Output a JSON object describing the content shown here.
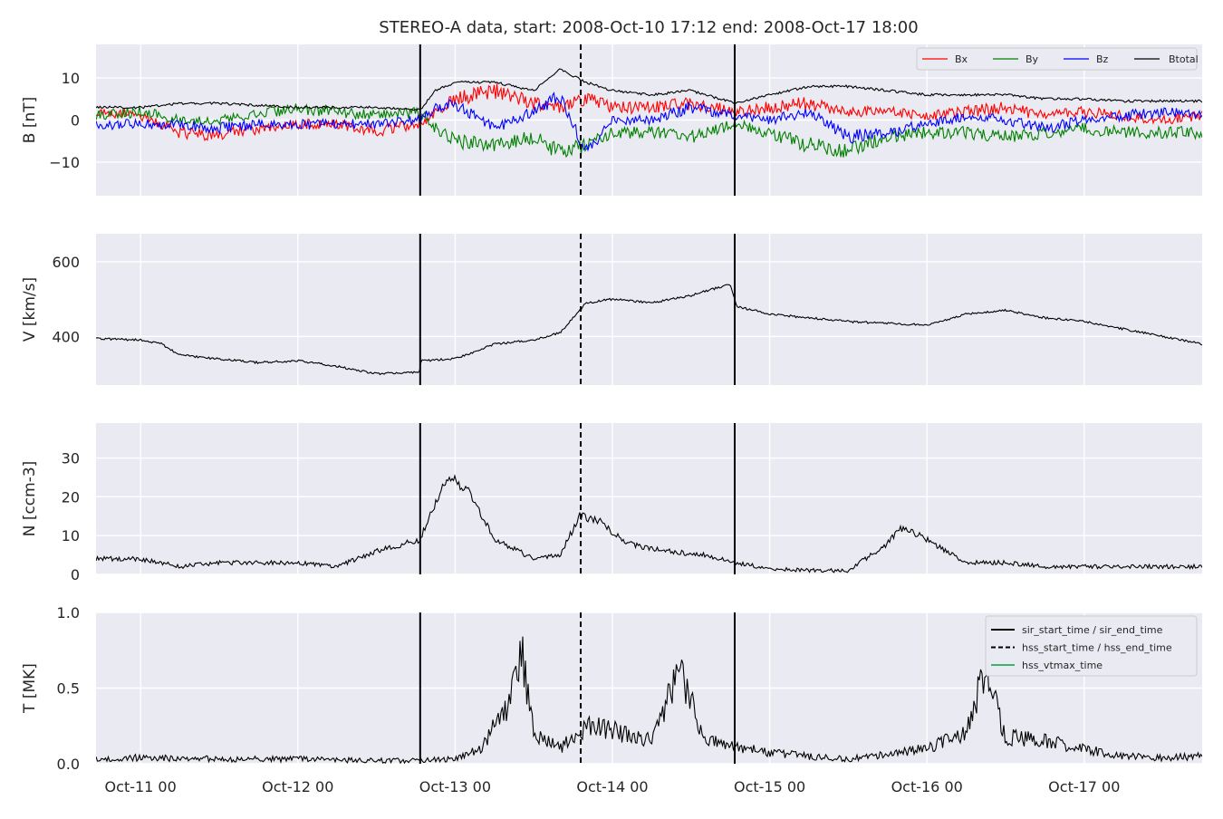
{
  "figure": {
    "title": "STEREO-A data, start: 2008-Oct-10 17:12  end: 2008-Oct-17 18:00"
  },
  "chart_data": {
    "type": "line",
    "title": "STEREO-A data, start: 2008-Oct-10 17:12  end: 2008-Oct-17 18:00",
    "x_axis": {
      "type": "time",
      "range": [
        "2008-10-10T17:12",
        "2008-10-17T18:00"
      ],
      "tick_values": [
        "2008-10-11T00:00",
        "2008-10-12T00:00",
        "2008-10-13T00:00",
        "2008-10-14T00:00",
        "2008-10-15T00:00",
        "2008-10-16T00:00",
        "2008-10-17T00:00"
      ],
      "tick_labels": [
        "Oct-11 00",
        "Oct-12 00",
        "Oct-13 00",
        "Oct-14 00",
        "Oct-15 00",
        "Oct-16 00",
        "Oct-17 00"
      ]
    },
    "grid": true,
    "event_lines": [
      {
        "time": "2008-10-12T18:40",
        "style": "solid",
        "meaning": "sir_start_time"
      },
      {
        "time": "2008-10-13T19:10",
        "style": "dashed",
        "meaning": "hss_start_time"
      },
      {
        "time": "2008-10-14T18:40",
        "style": "solid",
        "meaning": "sir_end_time"
      }
    ],
    "panels": [
      {
        "id": "b",
        "ylabel": "B [nT]",
        "ylim": [
          -18,
          18
        ],
        "yticks": [
          -10,
          0,
          10
        ],
        "ytick_labels": [
          "−10",
          "0",
          "10"
        ],
        "legend": {
          "placement": "top-right",
          "ncol": 4
        },
        "series": [
          {
            "name": "Bx",
            "color": "#ff0000",
            "x": [
              "2008-10-10T17:12",
              "2008-10-11T00:00",
              "2008-10-11T06:00",
              "2008-10-11T12:00",
              "2008-10-11T18:00",
              "2008-10-12T00:00",
              "2008-10-12T06:00",
              "2008-10-12T12:00",
              "2008-10-12T18:40",
              "2008-10-12T21:00",
              "2008-10-13T00:00",
              "2008-10-13T06:00",
              "2008-10-13T12:00",
              "2008-10-13T16:00",
              "2008-10-13T20:00",
              "2008-10-14T00:00",
              "2008-10-14T06:00",
              "2008-10-14T12:00",
              "2008-10-14T18:40",
              "2008-10-15T00:00",
              "2008-10-15T06:00",
              "2008-10-15T12:00",
              "2008-10-15T18:00",
              "2008-10-16T00:00",
              "2008-10-16T06:00",
              "2008-10-16T12:00",
              "2008-10-16T18:00",
              "2008-10-17T00:00",
              "2008-10-17T06:00",
              "2008-10-17T12:00",
              "2008-10-17T18:00"
            ],
            "y": [
              2,
              1,
              -3,
              -3.5,
              -2,
              -1,
              -1,
              -2.5,
              -1,
              2,
              5,
              7,
              4,
              3,
              5,
              3,
              3,
              4,
              2,
              3,
              4,
              2,
              2,
              1,
              2,
              3,
              1,
              2,
              1,
              0,
              1
            ]
          },
          {
            "name": "By",
            "color": "#008000",
            "x": [
              "2008-10-10T17:12",
              "2008-10-11T00:00",
              "2008-10-11T06:00",
              "2008-10-11T12:00",
              "2008-10-11T18:00",
              "2008-10-12T00:00",
              "2008-10-12T06:00",
              "2008-10-12T12:00",
              "2008-10-12T18:40",
              "2008-10-12T21:00",
              "2008-10-13T00:00",
              "2008-10-13T06:00",
              "2008-10-13T12:00",
              "2008-10-13T16:00",
              "2008-10-13T20:00",
              "2008-10-14T00:00",
              "2008-10-14T06:00",
              "2008-10-14T12:00",
              "2008-10-14T18:40",
              "2008-10-15T00:00",
              "2008-10-15T06:00",
              "2008-10-15T12:00",
              "2008-10-15T18:00",
              "2008-10-16T00:00",
              "2008-10-16T06:00",
              "2008-10-16T12:00",
              "2008-10-16T18:00",
              "2008-10-17T00:00",
              "2008-10-17T06:00",
              "2008-10-17T12:00",
              "2008-10-17T18:00"
            ],
            "y": [
              1,
              2,
              0,
              0,
              2,
              2.5,
              2,
              1,
              2,
              -2,
              -5,
              -6,
              -4,
              -8,
              -6,
              -3,
              -3,
              -4,
              -1,
              -3,
              -6,
              -7,
              -4,
              -3,
              -3,
              -4,
              -3,
              -2,
              -3,
              -3,
              -3
            ]
          },
          {
            "name": "Bz",
            "color": "#0000ff",
            "x": [
              "2008-10-10T17:12",
              "2008-10-11T00:00",
              "2008-10-11T06:00",
              "2008-10-11T12:00",
              "2008-10-11T18:00",
              "2008-10-12T00:00",
              "2008-10-12T06:00",
              "2008-10-12T12:00",
              "2008-10-12T18:40",
              "2008-10-12T21:00",
              "2008-10-13T00:00",
              "2008-10-13T06:00",
              "2008-10-13T12:00",
              "2008-10-13T16:00",
              "2008-10-13T20:00",
              "2008-10-14T00:00",
              "2008-10-14T06:00",
              "2008-10-14T12:00",
              "2008-10-14T18:40",
              "2008-10-15T00:00",
              "2008-10-15T06:00",
              "2008-10-15T12:00",
              "2008-10-15T18:00",
              "2008-10-16T00:00",
              "2008-10-16T06:00",
              "2008-10-16T12:00",
              "2008-10-16T18:00",
              "2008-10-17T00:00",
              "2008-10-17T06:00",
              "2008-10-17T12:00",
              "2008-10-17T18:00"
            ],
            "y": [
              -1,
              -1,
              -1,
              -2,
              -1,
              -1,
              -1,
              -1,
              0,
              3,
              4,
              -2,
              2,
              6,
              -8,
              0,
              0,
              3,
              1,
              0,
              2,
              -4,
              -3,
              -1,
              1,
              0,
              -2,
              0,
              1,
              2,
              1
            ]
          },
          {
            "name": "Btotal",
            "color": "#000000",
            "x": [
              "2008-10-10T17:12",
              "2008-10-11T00:00",
              "2008-10-11T06:00",
              "2008-10-11T12:00",
              "2008-10-11T18:00",
              "2008-10-12T00:00",
              "2008-10-12T06:00",
              "2008-10-12T12:00",
              "2008-10-12T18:40",
              "2008-10-12T21:00",
              "2008-10-13T00:00",
              "2008-10-13T06:00",
              "2008-10-13T12:00",
              "2008-10-13T16:00",
              "2008-10-13T20:00",
              "2008-10-14T00:00",
              "2008-10-14T06:00",
              "2008-10-14T12:00",
              "2008-10-14T18:40",
              "2008-10-15T00:00",
              "2008-10-15T06:00",
              "2008-10-15T12:00",
              "2008-10-15T18:00",
              "2008-10-16T00:00",
              "2008-10-16T06:00",
              "2008-10-16T12:00",
              "2008-10-16T18:00",
              "2008-10-17T00:00",
              "2008-10-17T06:00",
              "2008-10-17T12:00",
              "2008-10-17T18:00"
            ],
            "y": [
              3,
              3,
              4,
              4,
              3.5,
              3,
              3,
              3,
              2.5,
              7,
              9,
              9,
              7,
              12,
              9,
              7,
              6,
              7,
              4,
              6,
              8,
              8,
              7,
              6,
              6,
              6,
              5,
              5,
              4.5,
              4.5,
              4.5
            ]
          }
        ]
      },
      {
        "id": "v",
        "ylabel": "V [km/s]",
        "ylim": [
          270,
          675
        ],
        "yticks": [
          400,
          600
        ],
        "ytick_labels": [
          "400",
          "600"
        ],
        "series": [
          {
            "name": "",
            "color": "#000000",
            "x": [
              "2008-10-10T17:12",
              "2008-10-11T00:00",
              "2008-10-11T03:00",
              "2008-10-11T06:00",
              "2008-10-11T12:00",
              "2008-10-11T18:00",
              "2008-10-12T00:00",
              "2008-10-12T06:00",
              "2008-10-12T12:00",
              "2008-10-12T18:30",
              "2008-10-12T18:50",
              "2008-10-13T00:00",
              "2008-10-13T06:00",
              "2008-10-13T12:00",
              "2008-10-13T16:00",
              "2008-10-13T20:00",
              "2008-10-14T00:00",
              "2008-10-14T06:00",
              "2008-10-14T12:00",
              "2008-10-14T18:00",
              "2008-10-14T19:00",
              "2008-10-15T00:00",
              "2008-10-15T06:00",
              "2008-10-15T12:00",
              "2008-10-15T18:00",
              "2008-10-16T00:00",
              "2008-10-16T06:00",
              "2008-10-16T12:00",
              "2008-10-16T18:00",
              "2008-10-17T00:00",
              "2008-10-17T06:00",
              "2008-10-17T12:00",
              "2008-10-17T18:00"
            ],
            "y": [
              395,
              390,
              382,
              350,
              340,
              330,
              335,
              320,
              300,
              305,
              335,
              340,
              380,
              390,
              410,
              490,
              500,
              490,
              510,
              540,
              480,
              460,
              450,
              440,
              435,
              430,
              460,
              470,
              450,
              440,
              420,
              400,
              380
            ]
          }
        ]
      },
      {
        "id": "n",
        "ylabel": "N [ccm-3]",
        "ylim": [
          0,
          39
        ],
        "yticks": [
          0,
          10,
          20,
          30
        ],
        "ytick_labels": [
          "0",
          "10",
          "20",
          "30"
        ],
        "series": [
          {
            "name": "",
            "color": "#000000",
            "x": [
              "2008-10-10T17:12",
              "2008-10-11T00:00",
              "2008-10-11T06:00",
              "2008-10-11T12:00",
              "2008-10-11T18:00",
              "2008-10-12T00:00",
              "2008-10-12T06:00",
              "2008-10-12T12:00",
              "2008-10-12T18:40",
              "2008-10-12T20:00",
              "2008-10-12T23:00",
              "2008-10-13T02:00",
              "2008-10-13T06:00",
              "2008-10-13T12:00",
              "2008-10-13T16:00",
              "2008-10-13T19:00",
              "2008-10-13T22:00",
              "2008-10-14T02:00",
              "2008-10-14T08:00",
              "2008-10-14T14:00",
              "2008-10-14T18:40",
              "2008-10-15T00:00",
              "2008-10-15T06:00",
              "2008-10-15T12:00",
              "2008-10-15T18:00",
              "2008-10-15T20:00",
              "2008-10-15T23:00",
              "2008-10-16T06:00",
              "2008-10-16T12:00",
              "2008-10-16T18:00",
              "2008-10-17T00:00",
              "2008-10-17T06:00",
              "2008-10-17T12:00",
              "2008-10-17T18:00"
            ],
            "y": [
              4,
              4,
              2,
              3,
              3,
              3,
              2,
              6,
              9,
              15,
              25,
              22,
              9,
              4,
              5,
              15,
              14,
              8,
              6,
              5,
              3,
              1.5,
              1,
              1,
              8,
              12,
              10,
              3,
              3,
              2,
              2,
              2,
              2,
              2
            ]
          }
        ]
      },
      {
        "id": "t",
        "ylabel": "T [MK]",
        "ylim": [
          0,
          1
        ],
        "yticks": [
          0,
          0.5,
          1
        ],
        "ytick_labels": [
          "0.0",
          "0.5",
          "1.0"
        ],
        "legend": {
          "placement": "top-right"
        },
        "legend_entries": [
          {
            "label": "sir_start_time / sir_end_time",
            "style": "solid",
            "color": "#000000"
          },
          {
            "label": "hss_start_time / hss_end_time",
            "style": "dashed",
            "color": "#000000"
          },
          {
            "label": "hss_vtmax_time",
            "style": "solid",
            "color": "#3cb371"
          }
        ],
        "series": [
          {
            "name": "",
            "color": "#000000",
            "x": [
              "2008-10-10T17:12",
              "2008-10-11T00:00",
              "2008-10-11T12:00",
              "2008-10-12T00:00",
              "2008-10-12T12:00",
              "2008-10-12T18:40",
              "2008-10-13T00:00",
              "2008-10-13T04:00",
              "2008-10-13T06:00",
              "2008-10-13T08:00",
              "2008-10-13T10:00",
              "2008-10-13T12:00",
              "2008-10-13T16:00",
              "2008-10-13T20:00",
              "2008-10-14T00:00",
              "2008-10-14T06:00",
              "2008-10-14T10:00",
              "2008-10-14T14:00",
              "2008-10-14T18:40",
              "2008-10-15T00:00",
              "2008-10-15T06:00",
              "2008-10-15T12:00",
              "2008-10-15T18:00",
              "2008-10-16T00:00",
              "2008-10-16T06:00",
              "2008-10-16T09:00",
              "2008-10-16T12:00",
              "2008-10-16T18:00",
              "2008-10-17T00:00",
              "2008-10-17T06:00",
              "2008-10-17T12:00",
              "2008-10-17T18:00"
            ],
            "y": [
              0.03,
              0.04,
              0.03,
              0.03,
              0.02,
              0.02,
              0.03,
              0.1,
              0.25,
              0.4,
              0.8,
              0.2,
              0.1,
              0.25,
              0.22,
              0.15,
              0.64,
              0.15,
              0.12,
              0.07,
              0.05,
              0.03,
              0.06,
              0.1,
              0.2,
              0.66,
              0.18,
              0.15,
              0.1,
              0.05,
              0.04,
              0.05
            ]
          }
        ]
      }
    ]
  }
}
